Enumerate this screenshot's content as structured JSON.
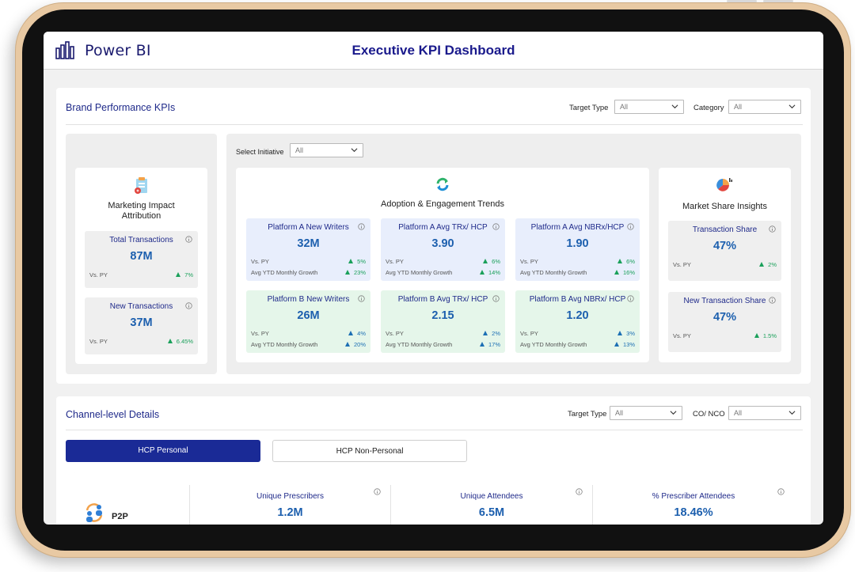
{
  "app": {
    "name": "Power BI",
    "dashboard_title": "Executive KPI Dashboard"
  },
  "brand": {
    "title": "Brand Performance KPIs",
    "filters": [
      {
        "label": "Target Type",
        "value": "All"
      },
      {
        "label": "Category",
        "value": "All"
      }
    ],
    "initiative": {
      "label": "Select Initiative",
      "value": "All"
    },
    "attribution": {
      "title_line1": "Marketing Impact",
      "title_line2": "Attribution",
      "cards": [
        {
          "title": "Total Transactions",
          "value": "87M",
          "vs_py_label": "Vs. PY",
          "vs_py": "7%"
        },
        {
          "title": "New Transactions",
          "value": "37M",
          "vs_py_label": "Vs. PY",
          "vs_py": "6.45%"
        }
      ]
    },
    "adoption": {
      "title": "Adoption & Engagement Trends",
      "cards": [
        {
          "title": "Platform A New Writers",
          "value": "32M",
          "vs_py_label": "Vs. PY",
          "vs_py": "5%",
          "growth_label": "Avg YTD Monthly Growth",
          "growth": "23%"
        },
        {
          "title": "Platform A Avg TRx/ HCP",
          "value": "3.90",
          "vs_py_label": "Vs. PY",
          "vs_py": "6%",
          "growth_label": "Avg YTD Monthly Growth",
          "growth": "14%"
        },
        {
          "title": "Platform A Avg NBRx/HCP",
          "value": "1.90",
          "vs_py_label": "Vs. PY",
          "vs_py": "6%",
          "growth_label": "Avg YTD Monthly Growth",
          "growth": "16%"
        },
        {
          "title": "Platform B New Writers",
          "value": "26M",
          "vs_py_label": "Vs. PY",
          "vs_py": "4%",
          "growth_label": "Avg YTD Monthly Growth",
          "growth": "20%"
        },
        {
          "title": "Platform B Avg TRx/ HCP",
          "value": "2.15",
          "vs_py_label": "Vs. PY",
          "vs_py": "2%",
          "growth_label": "Avg YTD Monthly Growth",
          "growth": "17%"
        },
        {
          "title": "Platform B Avg NBRx/ HCP",
          "value": "1.20",
          "vs_py_label": "Vs. PY",
          "vs_py": "3%",
          "growth_label": "Avg YTD Monthly Growth",
          "growth": "13%"
        }
      ]
    },
    "market": {
      "title": "Market Share Insights",
      "cards": [
        {
          "title": "Transaction Share",
          "value": "47%",
          "vs_py_label": "Vs. PY",
          "vs_py": "2%"
        },
        {
          "title": "New Transaction Share",
          "value": "47%",
          "vs_py_label": "Vs. PY",
          "vs_py": "1.5%"
        }
      ]
    }
  },
  "channel": {
    "title": "Channel-level Details",
    "filters": [
      {
        "label": "Target Type",
        "value": "All"
      },
      {
        "label": "CO/ NCO",
        "value": "All"
      }
    ],
    "tabs": [
      {
        "label": "HCP Personal",
        "active": true
      },
      {
        "label": "HCP Non-Personal",
        "active": false
      }
    ],
    "row": {
      "label": "P2P",
      "metrics": [
        {
          "title": "Unique Prescribers",
          "value": "1.2M"
        },
        {
          "title": "Unique Attendees",
          "value": "6.5M"
        },
        {
          "title": "% Prescriber Attendees",
          "value": "18.46%"
        }
      ]
    }
  },
  "colors": {
    "accent": "#1a2a96",
    "kpi_value": "#1c5fae",
    "positive": "#1aa05a",
    "blue_card": "#e8eefc",
    "green_card": "#e5f6ea",
    "device_frame": "#e8c9a3"
  }
}
